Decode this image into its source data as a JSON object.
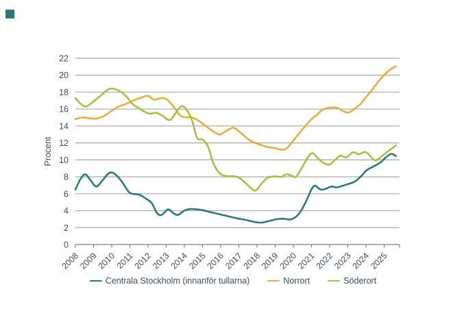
{
  "page": {
    "background": "#ffffff"
  },
  "logo": {
    "color": "#2b7a78"
  },
  "chart_data": {
    "type": "line",
    "title": "",
    "ylabel": "Procent",
    "xlabel": "",
    "ylim": [
      0,
      22
    ],
    "y_ticks": [
      0,
      2,
      4,
      6,
      8,
      10,
      12,
      14,
      16,
      18,
      20,
      22
    ],
    "x_ticks": [
      2008,
      2009,
      2010,
      2011,
      2012,
      2013,
      2014,
      2015,
      2016,
      2017,
      2018,
      2019,
      2020,
      2021,
      2022,
      2023,
      2024,
      2025
    ],
    "grid": "horizontal",
    "legend_position": "bottom-center",
    "colors": {
      "grid": "#a8a8a8",
      "axis": "#7f7f7f",
      "text": "#3f4d63"
    },
    "series": [
      {
        "id": "centrala-stockholm",
        "name": "Centrala Stockholm (innanför tullarna)",
        "color": "#2b7a78",
        "points": [
          [
            2008.0,
            6.5
          ],
          [
            2008.3,
            7.8
          ],
          [
            2008.55,
            8.3
          ],
          [
            2008.8,
            7.7
          ],
          [
            2009.15,
            6.85
          ],
          [
            2009.5,
            7.6
          ],
          [
            2009.9,
            8.5
          ],
          [
            2010.25,
            8.2
          ],
          [
            2010.6,
            7.3
          ],
          [
            2011.0,
            6.1
          ],
          [
            2011.5,
            5.9
          ],
          [
            2011.9,
            5.4
          ],
          [
            2012.2,
            4.9
          ],
          [
            2012.5,
            3.7
          ],
          [
            2012.75,
            3.5
          ],
          [
            2013.1,
            4.15
          ],
          [
            2013.4,
            3.7
          ],
          [
            2013.65,
            3.5
          ],
          [
            2014.0,
            4.0
          ],
          [
            2014.35,
            4.2
          ],
          [
            2014.9,
            4.1
          ],
          [
            2015.4,
            3.85
          ],
          [
            2015.9,
            3.6
          ],
          [
            2016.4,
            3.35
          ],
          [
            2016.9,
            3.1
          ],
          [
            2017.4,
            2.9
          ],
          [
            2017.9,
            2.65
          ],
          [
            2018.3,
            2.6
          ],
          [
            2018.7,
            2.8
          ],
          [
            2019.1,
            3.0
          ],
          [
            2019.5,
            3.05
          ],
          [
            2019.8,
            2.95
          ],
          [
            2020.1,
            3.2
          ],
          [
            2020.4,
            3.9
          ],
          [
            2020.7,
            5.1
          ],
          [
            2021.0,
            6.5
          ],
          [
            2021.2,
            6.95
          ],
          [
            2021.5,
            6.5
          ],
          [
            2021.8,
            6.6
          ],
          [
            2022.1,
            6.85
          ],
          [
            2022.4,
            6.75
          ],
          [
            2022.8,
            7.0
          ],
          [
            2023.1,
            7.2
          ],
          [
            2023.4,
            7.45
          ],
          [
            2023.7,
            8.0
          ],
          [
            2024.05,
            8.8
          ],
          [
            2024.4,
            9.2
          ],
          [
            2024.8,
            9.7
          ],
          [
            2025.1,
            10.3
          ],
          [
            2025.4,
            10.7
          ],
          [
            2025.65,
            10.45
          ]
        ]
      },
      {
        "id": "norrort",
        "name": "Norrort",
        "color": "#e6ac3c",
        "points": [
          [
            2008.0,
            14.8
          ],
          [
            2008.4,
            15.0
          ],
          [
            2008.8,
            14.9
          ],
          [
            2009.2,
            14.9
          ],
          [
            2009.6,
            15.2
          ],
          [
            2010.0,
            15.8
          ],
          [
            2010.4,
            16.3
          ],
          [
            2010.9,
            16.7
          ],
          [
            2011.3,
            17.1
          ],
          [
            2011.7,
            17.4
          ],
          [
            2012.0,
            17.55
          ],
          [
            2012.35,
            17.1
          ],
          [
            2012.75,
            17.3
          ],
          [
            2013.05,
            17.1
          ],
          [
            2013.4,
            16.3
          ],
          [
            2013.7,
            15.4
          ],
          [
            2013.95,
            15.05
          ],
          [
            2014.4,
            15.0
          ],
          [
            2014.8,
            14.6
          ],
          [
            2015.3,
            13.8
          ],
          [
            2015.9,
            13.0
          ],
          [
            2016.3,
            13.4
          ],
          [
            2016.7,
            13.8
          ],
          [
            2017.1,
            13.2
          ],
          [
            2017.6,
            12.3
          ],
          [
            2018.1,
            11.85
          ],
          [
            2018.6,
            11.5
          ],
          [
            2019.0,
            11.4
          ],
          [
            2019.3,
            11.2
          ],
          [
            2019.6,
            11.3
          ],
          [
            2019.9,
            12.0
          ],
          [
            2020.2,
            12.8
          ],
          [
            2020.5,
            13.6
          ],
          [
            2021.0,
            14.8
          ],
          [
            2021.3,
            15.3
          ],
          [
            2021.6,
            15.9
          ],
          [
            2022.0,
            16.15
          ],
          [
            2022.4,
            16.15
          ],
          [
            2022.75,
            15.75
          ],
          [
            2023.05,
            15.6
          ],
          [
            2023.35,
            16.0
          ],
          [
            2023.7,
            16.6
          ],
          [
            2024.0,
            17.4
          ],
          [
            2024.35,
            18.3
          ],
          [
            2024.7,
            19.3
          ],
          [
            2025.0,
            20.0
          ],
          [
            2025.3,
            20.6
          ],
          [
            2025.65,
            21.05
          ]
        ]
      },
      {
        "id": "soderort",
        "name": "Söderort",
        "color": "#9bc53d",
        "points": [
          [
            2008.0,
            17.3
          ],
          [
            2008.3,
            16.6
          ],
          [
            2008.6,
            16.3
          ],
          [
            2009.0,
            16.9
          ],
          [
            2009.4,
            17.6
          ],
          [
            2009.8,
            18.3
          ],
          [
            2010.1,
            18.4
          ],
          [
            2010.45,
            18.1
          ],
          [
            2010.8,
            17.5
          ],
          [
            2011.15,
            16.6
          ],
          [
            2011.5,
            16.1
          ],
          [
            2011.8,
            15.7
          ],
          [
            2012.1,
            15.45
          ],
          [
            2012.45,
            15.55
          ],
          [
            2012.8,
            15.2
          ],
          [
            2013.2,
            14.7
          ],
          [
            2013.55,
            15.6
          ],
          [
            2013.8,
            16.3
          ],
          [
            2014.05,
            16.1
          ],
          [
            2014.4,
            14.8
          ],
          [
            2014.7,
            12.6
          ],
          [
            2015.0,
            12.4
          ],
          [
            2015.3,
            11.6
          ],
          [
            2015.6,
            9.6
          ],
          [
            2015.95,
            8.4
          ],
          [
            2016.3,
            8.1
          ],
          [
            2016.9,
            8.0
          ],
          [
            2017.3,
            7.4
          ],
          [
            2017.7,
            6.6
          ],
          [
            2017.95,
            6.4
          ],
          [
            2018.25,
            7.2
          ],
          [
            2018.6,
            7.9
          ],
          [
            2019.0,
            8.05
          ],
          [
            2019.35,
            8.0
          ],
          [
            2019.6,
            8.3
          ],
          [
            2019.9,
            8.15
          ],
          [
            2020.15,
            8.0
          ],
          [
            2020.5,
            9.2
          ],
          [
            2020.8,
            10.3
          ],
          [
            2021.05,
            10.8
          ],
          [
            2021.35,
            10.2
          ],
          [
            2021.7,
            9.6
          ],
          [
            2022.0,
            9.45
          ],
          [
            2022.3,
            10.0
          ],
          [
            2022.6,
            10.5
          ],
          [
            2022.9,
            10.3
          ],
          [
            2023.3,
            10.9
          ],
          [
            2023.6,
            10.65
          ],
          [
            2024.0,
            10.9
          ],
          [
            2024.5,
            9.95
          ],
          [
            2024.9,
            10.5
          ],
          [
            2025.15,
            10.9
          ],
          [
            2025.4,
            11.3
          ],
          [
            2025.65,
            11.7
          ]
        ]
      }
    ]
  }
}
